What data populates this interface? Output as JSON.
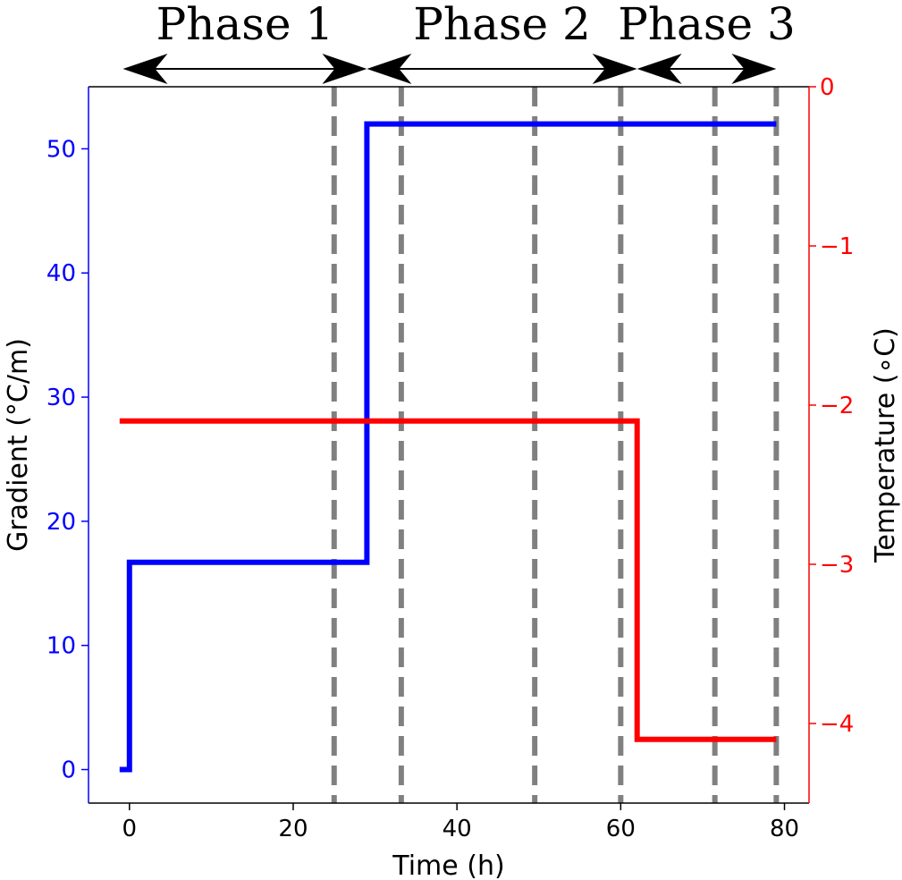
{
  "chart_data": {
    "type": "line",
    "xlabel": "Time (h)",
    "ylabel_left": "Gradient (°C/m)",
    "ylabel_right": "Temperature (∘C)",
    "xlim": [
      -5,
      83
    ],
    "ylim_left": [
      -2.7,
      55
    ],
    "ylim_right": [
      -4.5,
      0
    ],
    "xticks": [
      0,
      20,
      40,
      60,
      80
    ],
    "yticks_left": [
      0,
      10,
      20,
      30,
      40,
      50
    ],
    "yticks_right": [
      0,
      -1,
      -2,
      -3,
      -4
    ],
    "ytick_labels_right": [
      "0",
      "−1",
      "−2",
      "−3",
      "−4"
    ],
    "grid": false,
    "colors": {
      "left_axis": "#0000ff",
      "right_axis": "#ff0000",
      "dividers": "#808080"
    },
    "phase_lines_x": [
      25,
      33.2,
      49.5,
      60,
      71.5,
      79
    ],
    "phases": [
      {
        "label": "Phase 1",
        "start": -0.8,
        "end": 29
      },
      {
        "label": "Phase 2",
        "start": 29,
        "end": 62
      },
      {
        "label": "Phase 3",
        "start": 62,
        "end": 79
      }
    ],
    "series": [
      {
        "axis": "left",
        "color": "#0000ff",
        "x": [
          -1.2,
          0,
          0,
          29,
          29,
          79
        ],
        "y": [
          0,
          0,
          16.7,
          16.7,
          52,
          52
        ]
      },
      {
        "axis": "right",
        "color": "#ff0000",
        "x": [
          -1.2,
          62,
          62,
          79
        ],
        "y": [
          -2.1,
          -2.1,
          -4.1,
          -4.1
        ]
      }
    ]
  }
}
